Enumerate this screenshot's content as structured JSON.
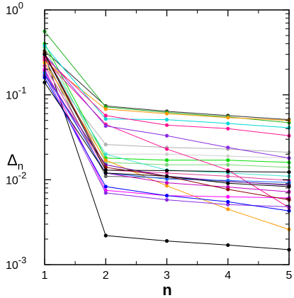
{
  "chart_data": {
    "type": "line",
    "xlabel": "n",
    "ylabel": "Δ",
    "ylabel_subscript": "n",
    "x": [
      1,
      2,
      3,
      4,
      5
    ],
    "xlim": [
      1,
      5
    ],
    "ylim": [
      0.001,
      1
    ],
    "yscale": "log",
    "grid": false,
    "legend": "none",
    "xticks": [
      "1",
      "2",
      "3",
      "4",
      "5"
    ],
    "yticks": [
      {
        "base": "10",
        "exp": "-3",
        "value": 0.001
      },
      {
        "base": "10",
        "exp": "-2",
        "value": 0.01
      },
      {
        "base": "10",
        "exp": "-1",
        "value": 0.1
      },
      {
        "base": "10",
        "exp": "0",
        "value": 1
      }
    ],
    "series": [
      {
        "color": "#000000",
        "values": [
          0.3,
          0.0022,
          0.0019,
          0.0017,
          0.0015
        ]
      },
      {
        "color": "#2e2e2e",
        "values": [
          0.33,
          0.074,
          0.064,
          0.057,
          0.051
        ]
      },
      {
        "color": "#606060",
        "values": [
          0.27,
          0.011,
          0.0105,
          0.0095,
          0.0088
        ]
      },
      {
        "color": "#b0b0b0",
        "values": [
          0.22,
          0.026,
          0.024,
          0.023,
          0.021
        ]
      },
      {
        "color": "#d0d0d0",
        "values": [
          0.2,
          0.02,
          0.02,
          0.019,
          0.018
        ]
      },
      {
        "color": "#20b020",
        "values": [
          0.56,
          0.072,
          0.062,
          0.055,
          0.047
        ]
      },
      {
        "color": "#00e000",
        "values": [
          0.4,
          0.018,
          0.017,
          0.017,
          0.016
        ]
      },
      {
        "color": "#7cd67c",
        "values": [
          0.36,
          0.016,
          0.015,
          0.015,
          0.014
        ]
      },
      {
        "color": "#ff9900",
        "values": [
          0.25,
          0.068,
          0.06,
          0.054,
          0.05
        ]
      },
      {
        "color": "#ff9900",
        "values": [
          0.24,
          0.017,
          0.0085,
          0.0045,
          0.0026
        ]
      },
      {
        "color": "#00d8d8",
        "values": [
          0.38,
          0.052,
          0.051,
          0.046,
          0.041
        ]
      },
      {
        "color": "#40e0d0",
        "values": [
          0.29,
          0.02,
          0.013,
          0.012,
          0.011
        ]
      },
      {
        "color": "#ff1493",
        "values": [
          0.28,
          0.057,
          0.044,
          0.04,
          0.033
        ]
      },
      {
        "color": "#ff1493",
        "values": [
          0.26,
          0.045,
          0.023,
          0.013,
          0.0047
        ]
      },
      {
        "color": "#e0409a",
        "values": [
          0.22,
          0.013,
          0.012,
          0.011,
          0.0098
        ]
      },
      {
        "color": "#ff00ff",
        "values": [
          0.2,
          0.0075,
          0.0065,
          0.0063,
          0.0061
        ]
      },
      {
        "color": "#c000c0",
        "values": [
          0.19,
          0.012,
          0.0092,
          0.0082,
          0.0072
        ]
      },
      {
        "color": "#8a2be2",
        "values": [
          0.3,
          0.043,
          0.033,
          0.024,
          0.018
        ]
      },
      {
        "color": "#8a2be2",
        "values": [
          0.18,
          0.007,
          0.0058,
          0.0051,
          0.0048
        ]
      },
      {
        "color": "#6a0dad",
        "values": [
          0.17,
          0.015,
          0.011,
          0.0096,
          0.0086
        ]
      },
      {
        "color": "#0000ff",
        "values": [
          0.16,
          0.0083,
          0.0065,
          0.0055,
          0.0043
        ]
      },
      {
        "color": "#1e64ff",
        "values": [
          0.18,
          0.012,
          0.0102,
          0.0098,
          0.0093
        ]
      },
      {
        "color": "#8b0000",
        "values": [
          0.31,
          0.014,
          0.011,
          0.0077,
          0.0058
        ]
      },
      {
        "color": "#000000",
        "values": [
          0.14,
          0.012,
          0.011,
          0.0091,
          0.0083
        ]
      },
      {
        "color": "#000000",
        "values": [
          0.3,
          0.013,
          0.0128,
          0.0125,
          0.0123
        ]
      }
    ]
  }
}
